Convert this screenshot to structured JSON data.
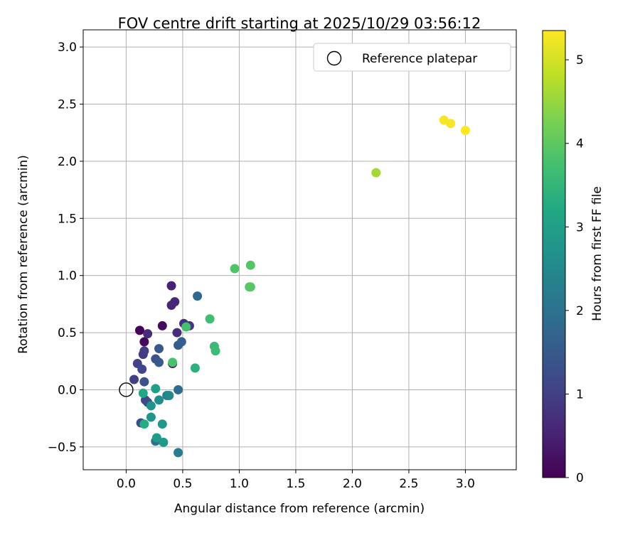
{
  "chart_data": {
    "type": "scatter",
    "title": "FOV centre drift starting at 2025/10/29 03:56:12",
    "xlabel": "Angular distance from reference (arcmin)",
    "ylabel": "Rotation from reference (arcmin)",
    "xlim": [
      -0.38,
      3.45
    ],
    "ylim": [
      -0.7,
      3.15
    ],
    "xticks": [
      0.0,
      0.5,
      1.0,
      1.5,
      2.0,
      2.5,
      3.0
    ],
    "xtick_labels": [
      "0.0",
      "0.5",
      "1.0",
      "1.5",
      "2.0",
      "2.5",
      "3.0"
    ],
    "yticks": [
      -0.5,
      0.0,
      0.5,
      1.0,
      1.5,
      2.0,
      2.5,
      3.0
    ],
    "ytick_labels": [
      "−0.5",
      "0.0",
      "0.5",
      "1.0",
      "1.5",
      "2.0",
      "2.5",
      "3.0"
    ],
    "grid": true,
    "legend": {
      "position": "top-right",
      "entries": [
        "Reference platepar"
      ]
    },
    "reference_point": {
      "x": 0.0,
      "y": 0.0,
      "label": "Reference platepar"
    },
    "colorbar": {
      "label": "Hours from first FF file",
      "colormap": "viridis",
      "range": [
        0,
        5.35
      ],
      "ticks": [
        0,
        1,
        2,
        3,
        4,
        5
      ],
      "tick_labels": [
        "0",
        "1",
        "2",
        "3",
        "4",
        "5"
      ]
    },
    "points": [
      {
        "x": 0.12,
        "y": 0.52,
        "hours": 0.05
      },
      {
        "x": 0.16,
        "y": 0.42,
        "hours": 0.1
      },
      {
        "x": 0.32,
        "y": 0.56,
        "hours": 0.15
      },
      {
        "x": 0.41,
        "y": 0.23,
        "hours": 0.2
      },
      {
        "x": 0.4,
        "y": 0.91,
        "hours": 0.5
      },
      {
        "x": 0.4,
        "y": 0.74,
        "hours": 0.55
      },
      {
        "x": 0.43,
        "y": 0.77,
        "hours": 0.6
      },
      {
        "x": 0.19,
        "y": 0.49,
        "hours": 0.65
      },
      {
        "x": 0.45,
        "y": 0.5,
        "hours": 0.7
      },
      {
        "x": 0.51,
        "y": 0.58,
        "hours": 0.75
      },
      {
        "x": 0.56,
        "y": 0.56,
        "hours": 0.8
      },
      {
        "x": 0.15,
        "y": 0.31,
        "hours": 0.9
      },
      {
        "x": 0.16,
        "y": 0.34,
        "hours": 0.95
      },
      {
        "x": 0.07,
        "y": 0.09,
        "hours": 1.0
      },
      {
        "x": 0.1,
        "y": 0.23,
        "hours": 1.05
      },
      {
        "x": 0.14,
        "y": 0.18,
        "hours": 1.1
      },
      {
        "x": 0.17,
        "y": -0.09,
        "hours": 1.15
      },
      {
        "x": 0.19,
        "y": -0.11,
        "hours": 1.2
      },
      {
        "x": 0.13,
        "y": -0.29,
        "hours": 1.25
      },
      {
        "x": 0.16,
        "y": 0.07,
        "hours": 1.3
      },
      {
        "x": 0.26,
        "y": 0.27,
        "hours": 1.35
      },
      {
        "x": 0.29,
        "y": 0.36,
        "hours": 1.45
      },
      {
        "x": 0.29,
        "y": 0.24,
        "hours": 1.5
      },
      {
        "x": 0.46,
        "y": 0.39,
        "hours": 1.55
      },
      {
        "x": 0.49,
        "y": 0.42,
        "hours": 1.6
      },
      {
        "x": 0.63,
        "y": 0.82,
        "hours": 1.8
      },
      {
        "x": 0.46,
        "y": 0.0,
        "hours": 1.9
      },
      {
        "x": 0.26,
        "y": -0.45,
        "hours": 2.0
      },
      {
        "x": 0.46,
        "y": -0.55,
        "hours": 2.2
      },
      {
        "x": 0.36,
        "y": -0.05,
        "hours": 2.3
      },
      {
        "x": 0.38,
        "y": -0.05,
        "hours": 2.5
      },
      {
        "x": 0.29,
        "y": -0.09,
        "hours": 2.6
      },
      {
        "x": 0.22,
        "y": -0.14,
        "hours": 2.7
      },
      {
        "x": 0.22,
        "y": -0.24,
        "hours": 2.75
      },
      {
        "x": 0.32,
        "y": -0.3,
        "hours": 2.8
      },
      {
        "x": 0.33,
        "y": -0.46,
        "hours": 2.85
      },
      {
        "x": 0.27,
        "y": -0.42,
        "hours": 2.9
      },
      {
        "x": 0.26,
        "y": 0.01,
        "hours": 3.0
      },
      {
        "x": 0.15,
        "y": -0.03,
        "hours": 3.2
      },
      {
        "x": 0.16,
        "y": -0.3,
        "hours": 3.3
      },
      {
        "x": 0.61,
        "y": 0.19,
        "hours": 3.4
      },
      {
        "x": 0.78,
        "y": 0.38,
        "hours": 3.6
      },
      {
        "x": 0.79,
        "y": 0.34,
        "hours": 3.65
      },
      {
        "x": 0.74,
        "y": 0.62,
        "hours": 3.7
      },
      {
        "x": 0.53,
        "y": 0.55,
        "hours": 3.75
      },
      {
        "x": 0.41,
        "y": 0.24,
        "hours": 3.8
      },
      {
        "x": 0.96,
        "y": 1.06,
        "hours": 3.85
      },
      {
        "x": 1.1,
        "y": 1.09,
        "hours": 3.9
      },
      {
        "x": 1.09,
        "y": 0.9,
        "hours": 3.95
      },
      {
        "x": 1.1,
        "y": 0.9,
        "hours": 3.95
      },
      {
        "x": 2.21,
        "y": 1.9,
        "hours": 4.6
      },
      {
        "x": 2.81,
        "y": 2.36,
        "hours": 5.3
      },
      {
        "x": 2.87,
        "y": 2.33,
        "hours": 5.3
      },
      {
        "x": 3.0,
        "y": 2.27,
        "hours": 5.35
      }
    ]
  }
}
